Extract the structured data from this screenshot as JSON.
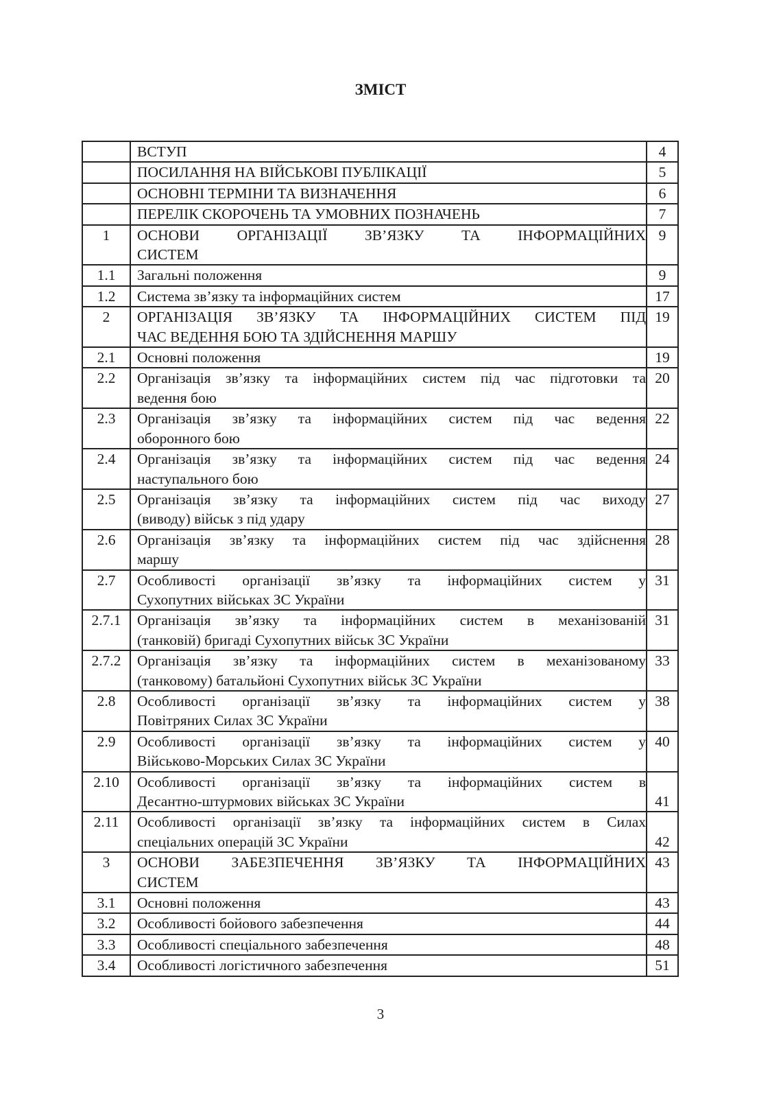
{
  "title": "ЗМІСТ",
  "page_number": "3",
  "toc": [
    {
      "num": "",
      "lines": [
        "ВСТУП"
      ],
      "page": "4"
    },
    {
      "num": "",
      "lines": [
        "ПОСИЛАННЯ НА ВІЙСЬКОВІ ПУБЛІКАЦІЇ"
      ],
      "page": "5"
    },
    {
      "num": "",
      "lines": [
        "ОСНОВНІ ТЕРМІНИ ТА ВИЗНАЧЕННЯ"
      ],
      "page": "6"
    },
    {
      "num": "",
      "lines": [
        "ПЕРЕЛІК СКОРОЧЕНЬ ТА УМОВНИХ ПОЗНАЧЕНЬ"
      ],
      "page": "7"
    },
    {
      "num": "1",
      "lines": [
        "ОСНОВИ ОРГАНІЗАЦІЇ ЗВ’ЯЗКУ ТА ІНФОРМАЦІЙНИХ",
        "СИСТЕМ"
      ],
      "page": "9"
    },
    {
      "num": "1.1",
      "lines": [
        "Загальні положення"
      ],
      "page": "9"
    },
    {
      "num": "1.2",
      "lines": [
        "Система зв’язку та інформаційних систем"
      ],
      "page": "17"
    },
    {
      "num": "2",
      "lines": [
        "ОРГАНІЗАЦІЯ ЗВ’ЯЗКУ ТА ІНФОРМАЦІЙНИХ СИСТЕМ ПІД",
        "ЧАС ВЕДЕННЯ БОЮ ТА ЗДІЙСНЕННЯ МАРШУ"
      ],
      "page": "19"
    },
    {
      "num": "2.1",
      "lines": [
        "Основні положення"
      ],
      "page": "19"
    },
    {
      "num": "2.2",
      "lines": [
        "Організація зв’язку та інформаційних систем під час підготовки та",
        "ведення бою"
      ],
      "page": "20"
    },
    {
      "num": "2.3",
      "lines": [
        "Організація зв’язку та інформаційних систем під час ведення",
        "оборонного бою"
      ],
      "page": "22"
    },
    {
      "num": "2.4",
      "lines": [
        "Організація зв’язку та інформаційних систем під час ведення",
        "наступального бою"
      ],
      "page": "24"
    },
    {
      "num": "2.5",
      "lines": [
        "Організація зв’язку та інформаційних систем під час виходу",
        "(виводу) військ з під удару"
      ],
      "page": "27"
    },
    {
      "num": "2.6",
      "lines": [
        "Організація зв’язку та інформаційних систем під час здійснення",
        "маршу"
      ],
      "page": "28"
    },
    {
      "num": "2.7",
      "lines": [
        "Особливості організації зв’язку та інформаційних систем у",
        "Сухопутних військах ЗС України"
      ],
      "page": "31"
    },
    {
      "num": "2.7.1",
      "lines": [
        "Організація зв’язку та інформаційних систем в механізованій",
        "(танковій) бригаді Сухопутних військ ЗС України"
      ],
      "page": "31"
    },
    {
      "num": "2.7.2",
      "lines": [
        "Організація зв’язку та інформаційних систем в механізованому",
        "(танковому) батальйоні Сухопутних військ ЗС України"
      ],
      "page": "33"
    },
    {
      "num": "2.8",
      "lines": [
        "Особливості організації зв’язку та інформаційних систем у",
        "Повітряних Силах ЗС України"
      ],
      "page": "38"
    },
    {
      "num": "2.9",
      "lines": [
        "Особливості організації зв’язку та інформаційних систем у",
        "Військово-Морських Силах ЗС України"
      ],
      "page": "40"
    },
    {
      "num": "2.10",
      "lines": [
        "Особливості організації зв’язку та інформаційних систем в",
        "Десантно-штурмових військах ЗС України"
      ],
      "page": "41"
    },
    {
      "num": "2.11",
      "lines": [
        "Особливості організації зв’язку та інформаційних систем в Силах",
        "спеціальних операцій ЗС України"
      ],
      "page": "42"
    },
    {
      "num": "3",
      "lines": [
        "ОСНОВИ ЗАБЕЗПЕЧЕННЯ ЗВ’ЯЗКУ ТА ІНФОРМАЦІЙНИХ",
        "СИСТЕМ"
      ],
      "page": "43"
    },
    {
      "num": "3.1",
      "lines": [
        "Основні положення"
      ],
      "page": "43"
    },
    {
      "num": "3.2",
      "lines": [
        "Особливості бойового забезпечення"
      ],
      "page": "44"
    },
    {
      "num": "3.3",
      "lines": [
        "Особливості спеціального забезпечення"
      ],
      "page": "48"
    },
    {
      "num": "3.4",
      "lines": [
        "Особливості логістичного забезпечення"
      ],
      "page": "51"
    }
  ]
}
